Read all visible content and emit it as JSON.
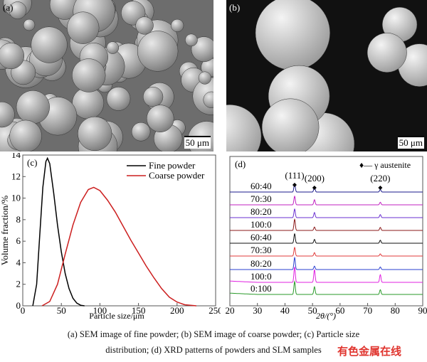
{
  "panels": {
    "a": {
      "label": "(a)",
      "scale_bar": "50 μm"
    },
    "b": {
      "label": "(b)",
      "scale_bar": "50 μm"
    }
  },
  "chart_data": [
    {
      "type": "line",
      "panel_label": "(c)",
      "xlabel": "Particle size/μm",
      "ylabel": "Volume fraction/%",
      "xlim": [
        0,
        250
      ],
      "ylim": [
        0,
        14
      ],
      "xticks": [
        0,
        50,
        100,
        150,
        200,
        250
      ],
      "yticks": [
        0,
        2,
        4,
        6,
        8,
        10,
        12,
        14
      ],
      "legend_position": "top-right",
      "series": [
        {
          "name": "Fine powder",
          "color": "#000000",
          "points": [
            [
              13,
              0
            ],
            [
              18,
              2
            ],
            [
              22,
              6.5
            ],
            [
              26,
              11
            ],
            [
              30,
              13.4
            ],
            [
              32,
              13.7
            ],
            [
              35,
              13.2
            ],
            [
              40,
              10.5
            ],
            [
              45,
              7.5
            ],
            [
              50,
              5
            ],
            [
              55,
              3
            ],
            [
              60,
              1.6
            ],
            [
              65,
              0.7
            ],
            [
              70,
              0.25
            ],
            [
              75,
              0.05
            ],
            [
              80,
              0
            ]
          ]
        },
        {
          "name": "Coarse powder",
          "color": "#cc1f1f",
          "points": [
            [
              25,
              0
            ],
            [
              35,
              0.4
            ],
            [
              45,
              2
            ],
            [
              55,
              4.8
            ],
            [
              65,
              7.5
            ],
            [
              75,
              9.6
            ],
            [
              85,
              10.8
            ],
            [
              92,
              11
            ],
            [
              100,
              10.7
            ],
            [
              110,
              9.8
            ],
            [
              120,
              8.7
            ],
            [
              130,
              7.4
            ],
            [
              140,
              6.1
            ],
            [
              150,
              4.9
            ],
            [
              160,
              3.7
            ],
            [
              170,
              2.6
            ],
            [
              180,
              1.6
            ],
            [
              190,
              0.8
            ],
            [
              200,
              0.35
            ],
            [
              210,
              0.1
            ],
            [
              225,
              0
            ]
          ]
        }
      ]
    },
    {
      "type": "line",
      "panel_label": "(d)",
      "xlabel": "2θ/(°)",
      "xlim": [
        20,
        90
      ],
      "xticks": [
        20,
        30,
        40,
        50,
        60,
        70,
        80,
        90
      ],
      "legend": "♦— γ austenite",
      "legend_position": "top-right",
      "peaks": [
        {
          "label": "(111)",
          "two_theta": 43.5
        },
        {
          "label": "(200)",
          "two_theta": 50.7
        },
        {
          "label": "(220)",
          "two_theta": 74.6
        }
      ],
      "series": [
        {
          "name": "60:40",
          "color": "#1a1a8c",
          "peak_heights": [
            1,
            0.6,
            0.3
          ]
        },
        {
          "name": "70:30",
          "color": "#c020c0",
          "peak_heights": [
            1,
            0.6,
            0.3
          ]
        },
        {
          "name": "80:20",
          "color": "#6a2fd0",
          "peak_heights": [
            1,
            0.6,
            0.35
          ]
        },
        {
          "name": "100:0",
          "color": "#8b1a1a",
          "peak_heights": [
            1.3,
            0.4,
            0.35
          ]
        },
        {
          "name": "60:40",
          "color": "#111111",
          "peak_heights": [
            1.1,
            0.45,
            0.35
          ]
        },
        {
          "name": "70:30",
          "color": "#e03a3a",
          "peak_heights": [
            1,
            0.4,
            0.25
          ]
        },
        {
          "name": "80:20",
          "color": "#2a3fd0",
          "peak_heights": [
            1.4,
            0.4,
            0.3
          ]
        },
        {
          "name": "100:0",
          "color": "#e020e0",
          "peak_heights": [
            1.8,
            1.5,
            0.9
          ]
        },
        {
          "name": "0:100",
          "color": "#2a9a2a",
          "peak_heights": [
            1.5,
            0.9,
            0.55
          ]
        }
      ]
    }
  ],
  "caption": {
    "line1": "(a) SEM image of fine powder; (b) SEM image of coarse powder; (c) Particle size",
    "line2": "distribution; (d) XRD patterns of powders and SLM samples"
  },
  "watermark": "有色金属在线"
}
